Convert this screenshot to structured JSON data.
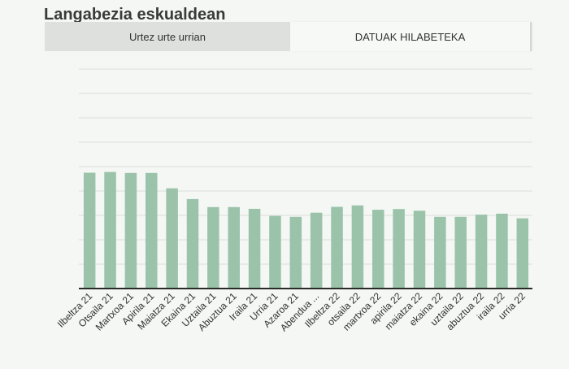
{
  "header": {
    "title": "Langabezia eskualdean"
  },
  "tabs": [
    {
      "label": "Urtez urte urrian",
      "active": false
    },
    {
      "label": "DATUAK HILABETEKA",
      "active": true
    }
  ],
  "colors": {
    "bar": "#9ac3aa",
    "grid": "#dcdedb",
    "axis": "#2a2a2a"
  },
  "chart_data": {
    "type": "bar",
    "categories": [
      "Ilbeltza 21",
      "Otsaila 21",
      "Martxoa 21",
      "Apirila 21",
      "Maiatza 21",
      "Ekaina 21",
      "Uztaila 21",
      "Abuztua 21",
      "Iraila 21",
      "Urria 21",
      "Azaroa 21",
      "Abendua ...",
      "Ilbeltza 22",
      "otsaila 22",
      "martxoa 22",
      "apirila 22",
      "maiatza 22",
      "ekaina 22",
      "uztaila 22",
      "abuztua 22",
      "iraila 22",
      "urria 22"
    ],
    "values": [
      4.75,
      4.78,
      4.74,
      4.74,
      4.11,
      3.67,
      3.34,
      3.34,
      3.27,
      2.98,
      2.94,
      3.11,
      3.35,
      3.41,
      3.23,
      3.26,
      3.19,
      2.94,
      2.94,
      3.03,
      3.07,
      2.88
    ],
    "ylim": [
      0,
      9
    ],
    "grid_step": 1,
    "grid": true,
    "legend": "none"
  }
}
